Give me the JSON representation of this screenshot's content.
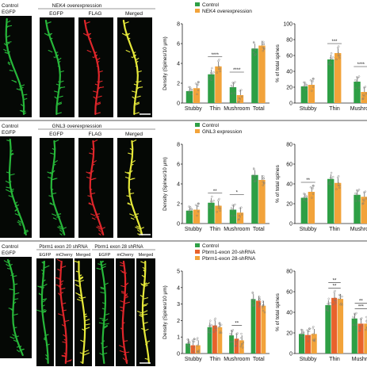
{
  "colors": {
    "control": "#2e9f45",
    "exp1": "#f2a33a",
    "exp2": "#e8622b",
    "dendrite_green": "#27b83a",
    "dendrite_red": "#e0262b",
    "dendrite_yellow": "#e6e93a",
    "image_bg": "#050805"
  },
  "panels": [
    {
      "id": "nek4",
      "image_labels": {
        "control": [
          "Control",
          "EGFP"
        ],
        "group_title": "NEK4 overexpression",
        "channels": [
          "EGFP",
          "FLAG",
          "Merged"
        ]
      },
      "density_chart": {
        "ylabel": "Density (Spines/10 μm)",
        "ylim": [
          0,
          8
        ],
        "yticks": [
          "0",
          "2",
          "4",
          "6",
          "8"
        ],
        "categories": [
          "Stubby",
          "Thin",
          "Mushroom",
          "Total"
        ],
        "legend": [
          "Control",
          "NEK4 overexpression"
        ],
        "series": [
          {
            "name": "Control",
            "values": [
              1.2,
              2.9,
              1.6,
              5.5
            ]
          },
          {
            "name": "NEK4 overexpression",
            "values": [
              1.5,
              3.7,
              0.8,
              5.8
            ]
          }
        ],
        "sig": [
          {
            "cat": 1,
            "text": "****"
          },
          {
            "cat": 2,
            "text": "****"
          }
        ]
      },
      "percent_chart": {
        "ylabel": "% of total spines",
        "ylim": [
          0,
          100
        ],
        "yticks": [
          "0",
          "20",
          "40",
          "60",
          "80",
          "100"
        ],
        "categories": [
          "Stubby",
          "Thin",
          "Mushroo"
        ],
        "series": [
          {
            "name": "Control",
            "values": [
              21,
              55,
              27
            ]
          },
          {
            "name": "NEK4 overexpression",
            "values": [
              23,
              63,
              14
            ]
          }
        ],
        "sig": [
          {
            "cat": 1,
            "text": "***"
          },
          {
            "cat": 2,
            "text": "****"
          }
        ]
      }
    },
    {
      "id": "gnl3",
      "image_labels": {
        "control": [
          "Control",
          "EGFP"
        ],
        "group_title": "GNL3 overexpression",
        "channels": [
          "EGFP",
          "FLAG",
          "Merged"
        ]
      },
      "density_chart": {
        "ylabel": "Density (Spines/10 μm)",
        "ylim": [
          0,
          8
        ],
        "yticks": [
          "0",
          "2",
          "4",
          "6",
          "8"
        ],
        "categories": [
          "Stubby",
          "Thin",
          "Mushroom",
          "Total"
        ],
        "legend": [
          "Control",
          "GNL3 expression"
        ],
        "series": [
          {
            "name": "Control",
            "values": [
              1.3,
              2.1,
              1.4,
              4.9
            ]
          },
          {
            "name": "GNL3 expression",
            "values": [
              1.4,
              1.8,
              1.1,
              4.4
            ]
          }
        ],
        "sig": [
          {
            "cat": 1,
            "text": "**"
          },
          {
            "cat": 2,
            "text": "*"
          }
        ]
      },
      "percent_chart": {
        "ylabel": "% of total spines",
        "ylim": [
          0,
          80
        ],
        "yticks": [
          "0",
          "20",
          "40",
          "60",
          "80"
        ],
        "categories": [
          "Stubby",
          "Thin",
          "Mushroo"
        ],
        "series": [
          {
            "name": "Control",
            "values": [
              26,
              45,
              29
            ]
          },
          {
            "name": "GNL3 expression",
            "values": [
              32,
              41,
              27
            ]
          }
        ],
        "sig": [
          {
            "cat": 0,
            "text": "**"
          }
        ]
      }
    },
    {
      "id": "pbrm1",
      "image_labels": {
        "control": [
          "Control",
          "EGFP"
        ],
        "group_title_1": "Pbrm1 exon 20 shRNA",
        "group_title_2": "Pbrm1 exon 28 shRNA",
        "channels_1": [
          "EGFP",
          "mCherry",
          "Merged"
        ],
        "channels_2": [
          "EGFP",
          "mCherry",
          "Merged"
        ]
      },
      "density_chart": {
        "ylabel": "Density (Spines/10 μm)",
        "ylim": [
          0,
          5
        ],
        "yticks": [
          "0",
          "1",
          "2",
          "3",
          "4",
          "5"
        ],
        "categories": [
          "Stubby",
          "Thin",
          "Mushroom",
          "Total"
        ],
        "legend": [
          "Control",
          "Pbrm1-exon 20-shRNA",
          "Pbrm1-exon 28-shRNA"
        ],
        "series": [
          {
            "name": "Control",
            "values": [
              0.6,
              1.6,
              1.1,
              3.3
            ]
          },
          {
            "name": "Pbrm1-exon 20-shRNA",
            "values": [
              0.5,
              1.7,
              0.9,
              3.2
            ]
          },
          {
            "name": "Pbrm1-exon 28-shRNA",
            "values": [
              0.5,
              1.6,
              0.8,
              2.9
            ]
          }
        ],
        "sig": [
          {
            "cat": 2,
            "text": "**"
          }
        ]
      },
      "percent_chart": {
        "ylabel": "% of total spines",
        "ylim": [
          0,
          80
        ],
        "yticks": [
          "0",
          "20",
          "40",
          "60",
          "80"
        ],
        "categories": [
          "Stubby",
          "Thin",
          "Mushro"
        ],
        "series": [
          {
            "name": "Control",
            "values": [
              19,
              47,
              34
            ]
          },
          {
            "name": "Pbrm1-exon 20-shRNA",
            "values": [
              18,
              54,
              29
            ]
          },
          {
            "name": "Pbrm1-exon 28-shRNA",
            "values": [
              19,
              53,
              29
            ]
          }
        ],
        "sig": [
          {
            "cat": 1,
            "text": "**"
          },
          {
            "cat": 1,
            "text": "**"
          },
          {
            "cat": 2,
            "text": "***"
          },
          {
            "cat": 2,
            "text": "**"
          }
        ]
      }
    }
  ]
}
